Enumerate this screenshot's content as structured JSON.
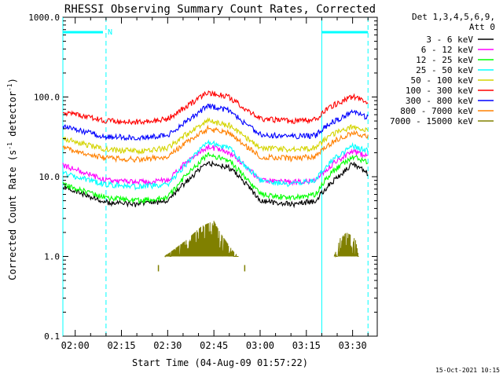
{
  "chart_data": {
    "type": "line",
    "title": "RHESSI Observing Summary Count Rates, Corrected",
    "xlabel": "Start Time (04-Aug-09 01:57:22)",
    "ylabel_main": "Corrected Count Rate (s",
    "ylabel_sup1": "-1",
    "ylabel_mid": " detector",
    "ylabel_sup2": "-1",
    "ylabel_end": ")",
    "yscale": "log",
    "ylim": [
      0.1,
      1000
    ],
    "xlim": [
      "01:56:00",
      "03:38:00"
    ],
    "x_ticks": [
      "02:00",
      "02:15",
      "02:30",
      "02:45",
      "03:00",
      "03:15",
      "03:30"
    ],
    "y_ticks": [
      "0.1",
      "1.0",
      "10.0",
      "100.0",
      "1000.0"
    ],
    "legend": {
      "header_line1": "Det 1,3,4,5,6,9,",
      "header_line2": "Att 0",
      "placement": "right",
      "entries": [
        {
          "label": "3 - 6 keV",
          "color": "#000000"
        },
        {
          "label": "6 - 12 keV",
          "color": "#ff00ff"
        },
        {
          "label": "12 - 25 keV",
          "color": "#00ff00"
        },
        {
          "label": "25 - 50 keV",
          "color": "#00ffff"
        },
        {
          "label": "50 - 100 keV",
          "color": "#d4d400"
        },
        {
          "label": "100 - 300 keV",
          "color": "#ff0000"
        },
        {
          "label": "300 - 800 keV",
          "color": "#0000ff"
        },
        {
          "label": "800 - 7000 keV",
          "color": "#ff8000"
        },
        {
          "label": "7000 - 15000 keV",
          "color": "#808000"
        }
      ]
    },
    "series": [
      {
        "name": "3 - 6 keV",
        "color": "#000000",
        "x": [
          "01:56",
          "02:10",
          "02:20",
          "02:30",
          "02:35",
          "02:43",
          "02:50",
          "02:55",
          "03:00",
          "03:10",
          "03:18",
          "03:21",
          "03:24",
          "03:30",
          "03:35"
        ],
        "values": [
          7.5,
          4.8,
          4.5,
          5.0,
          8.0,
          15.0,
          13.0,
          8.5,
          5.0,
          4.5,
          5.0,
          7.0,
          9.0,
          14.5,
          11.0
        ]
      },
      {
        "name": "6 - 12 keV",
        "color": "#ff00ff",
        "x": [
          "01:56",
          "02:10",
          "02:20",
          "02:30",
          "02:35",
          "02:43",
          "02:50",
          "02:55",
          "03:00",
          "03:10",
          "03:18",
          "03:21",
          "03:24",
          "03:30",
          "03:35"
        ],
        "values": [
          14.0,
          9.0,
          8.5,
          9.0,
          14.0,
          24.0,
          20.0,
          14.0,
          9.0,
          8.5,
          9.0,
          12.0,
          15.0,
          21.0,
          18.0
        ]
      },
      {
        "name": "12 - 25 keV",
        "color": "#00ff00",
        "x": [
          "01:56",
          "02:10",
          "02:20",
          "02:30",
          "02:35",
          "02:43",
          "02:50",
          "02:55",
          "03:00",
          "03:10",
          "03:18",
          "03:21",
          "03:24",
          "03:30",
          "03:35"
        ],
        "values": [
          8.0,
          5.5,
          5.0,
          5.5,
          9.5,
          19.0,
          16.0,
          10.0,
          6.0,
          5.5,
          6.0,
          9.0,
          12.0,
          18.0,
          15.0
        ]
      },
      {
        "name": "25 - 50 keV",
        "color": "#00ffff",
        "x": [
          "01:56",
          "02:10",
          "02:20",
          "02:30",
          "02:35",
          "02:43",
          "02:50",
          "02:55",
          "03:00",
          "03:10",
          "03:18",
          "03:21",
          "03:24",
          "03:30",
          "03:35"
        ],
        "values": [
          11.0,
          8.0,
          7.5,
          8.0,
          13.0,
          27.0,
          23.0,
          14.0,
          9.0,
          8.0,
          9.0,
          13.0,
          17.0,
          24.0,
          21.0
        ]
      },
      {
        "name": "50 - 100 keV",
        "color": "#d4d400",
        "x": [
          "01:56",
          "02:10",
          "02:20",
          "02:30",
          "02:35",
          "02:43",
          "02:50",
          "02:55",
          "03:00",
          "03:10",
          "03:18",
          "03:21",
          "03:24",
          "03:30",
          "03:35"
        ],
        "values": [
          30.0,
          22.0,
          21.0,
          23.0,
          32.0,
          50.0,
          44.0,
          32.0,
          23.0,
          22.0,
          23.0,
          29.0,
          35.0,
          42.0,
          38.0
        ]
      },
      {
        "name": "100 - 300 keV",
        "color": "#ff0000",
        "x": [
          "01:56",
          "02:10",
          "02:20",
          "02:30",
          "02:35",
          "02:43",
          "02:50",
          "02:55",
          "03:00",
          "03:10",
          "03:18",
          "03:21",
          "03:24",
          "03:30",
          "03:35"
        ],
        "values": [
          65.0,
          50.0,
          49.0,
          53.0,
          72.0,
          115.0,
          100.0,
          72.0,
          53.0,
          50.0,
          52.0,
          66.0,
          80.0,
          102.0,
          88.0
        ]
      },
      {
        "name": "300 - 800 keV",
        "color": "#0000ff",
        "x": [
          "01:56",
          "02:10",
          "02:20",
          "02:30",
          "02:35",
          "02:43",
          "02:50",
          "02:55",
          "03:00",
          "03:10",
          "03:18",
          "03:21",
          "03:24",
          "03:30",
          "03:35"
        ],
        "values": [
          42.0,
          32.0,
          31.0,
          33.0,
          46.0,
          78.0,
          68.0,
          47.0,
          34.0,
          32.0,
          33.0,
          42.0,
          50.0,
          64.0,
          56.0
        ]
      },
      {
        "name": "800 - 7000 keV",
        "color": "#ff8000",
        "x": [
          "01:56",
          "02:10",
          "02:20",
          "02:30",
          "02:35",
          "02:43",
          "02:50",
          "02:55",
          "03:00",
          "03:10",
          "03:18",
          "03:21",
          "03:24",
          "03:30",
          "03:35"
        ],
        "values": [
          23.0,
          17.0,
          16.5,
          18.0,
          25.0,
          40.0,
          35.0,
          25.0,
          18.0,
          17.0,
          18.0,
          23.0,
          28.0,
          36.0,
          32.0
        ]
      },
      {
        "name": "7000 - 15000 keV",
        "color": "#808000",
        "x": [
          "02:29",
          "02:36",
          "02:41",
          "02:45",
          "02:47",
          "02:51",
          "02:53",
          "03:24",
          "03:26",
          "03:28",
          "03:30",
          "03:31",
          "03:32"
        ],
        "values": [
          1.0,
          1.6,
          2.4,
          2.8,
          2.0,
          1.2,
          1.0,
          1.0,
          1.7,
          2.0,
          1.8,
          1.6,
          1.0
        ]
      }
    ],
    "annotations": [
      {
        "text": "N",
        "color": "#00ffff"
      }
    ],
    "markers": {
      "night_bars": [
        [
          "01:56",
          "02:09"
        ],
        [
          "03:20",
          "03:35"
        ]
      ],
      "vertical_lines": [
        {
          "time": "01:56",
          "style": "solid"
        },
        {
          "time": "02:10",
          "style": "dashed"
        },
        {
          "time": "03:20",
          "style": "solid"
        },
        {
          "time": "03:35",
          "style": "dashed"
        }
      ],
      "color": "#00ffff"
    },
    "grid": false
  },
  "footer": {
    "timestamp": "15-Oct-2021 10:15"
  }
}
